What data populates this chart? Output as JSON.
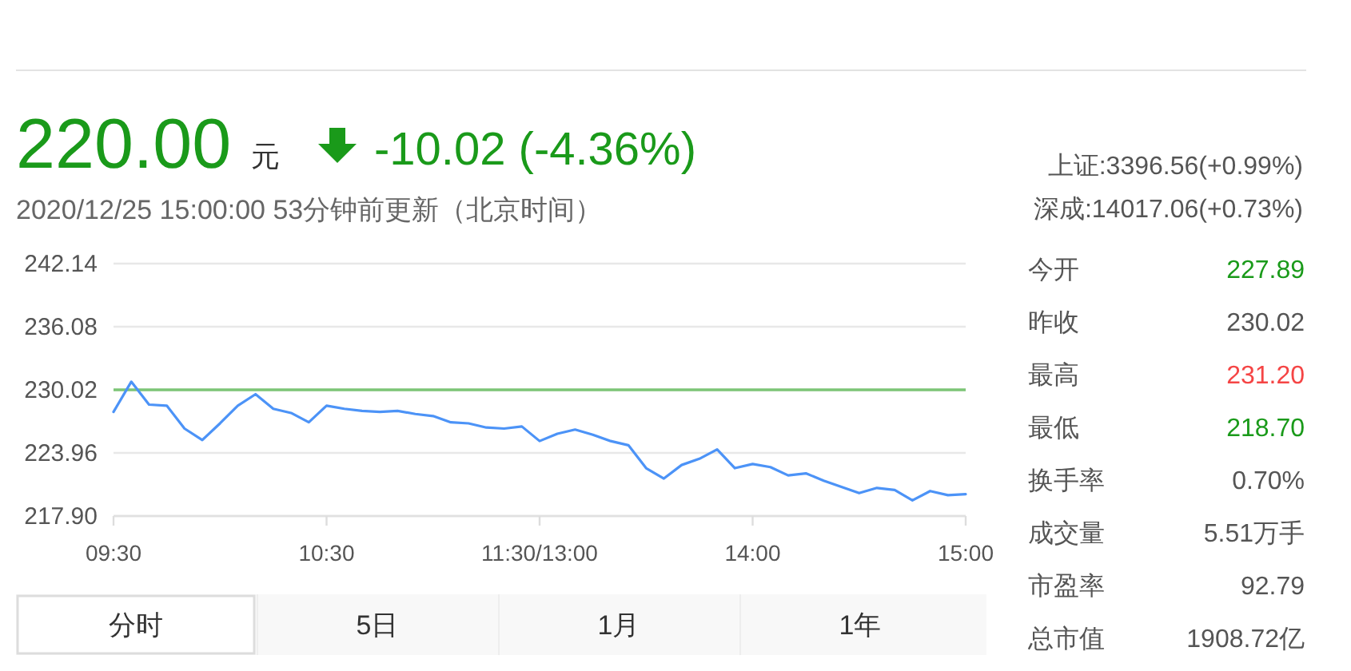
{
  "chart_data": {
    "type": "line",
    "title": "220.00",
    "annotations": [
      "元",
      "-10.02 (-4.36%)",
      "2020/12/25 15:00:00  53分钟前更新（北京时间）",
      "上证:3396.56(+0.99%)",
      "深成:14017.06(+0.73%)",
      "今开",
      "227.89",
      "昨收",
      "230.02",
      "最高",
      "231.20",
      "最低",
      "218.70",
      "换手率",
      "0.70%",
      "成交量",
      "5.51万手",
      "市盈率",
      "92.79",
      "总市值",
      "1908.72亿",
      "分时",
      "5日",
      "1月",
      "1年"
    ],
    "series": [
      {
        "color": "#4c93f7",
        "values": [
          227.9,
          230.8,
          228.6,
          228.5,
          226.3,
          225.2,
          226.8,
          228.5,
          229.6,
          228.2,
          227.8,
          226.9,
          228.5,
          228.2,
          228.0,
          227.9,
          228.0,
          227.7,
          227.5,
          226.9,
          226.8,
          226.4,
          226.3,
          226.5,
          225.1,
          225.8,
          226.2,
          225.7,
          225.1,
          224.7,
          222.5,
          221.5,
          222.8,
          223.4,
          224.3,
          222.5,
          222.9,
          222.6,
          221.8,
          222.0,
          221.3,
          220.7,
          220.1,
          220.6,
          220.4,
          219.4,
          220.3,
          219.9,
          220.0
        ]
      }
    ],
    "categories": [
      "09:30",
      null,
      null,
      null,
      null,
      null,
      null,
      null,
      null,
      null,
      null,
      null,
      "10:30",
      null,
      null,
      null,
      null,
      null,
      null,
      null,
      null,
      null,
      null,
      null,
      "11:30/13:00",
      null,
      null,
      null,
      null,
      null,
      null,
      null,
      null,
      null,
      null,
      null,
      "14:00",
      null,
      null,
      null,
      null,
      null,
      null,
      null,
      null,
      null,
      null,
      null,
      "15:00"
    ],
    "ylim": [
      217.9,
      242.14
    ],
    "yticks": [
      {
        "value": 217.9,
        "label": "217.90"
      },
      {
        "value": 223.96,
        "label": "223.96"
      },
      {
        "value": 230.02,
        "label": "230.02"
      },
      {
        "value": 236.08,
        "label": "236.08"
      },
      {
        "value": 242.14,
        "label": "242.14"
      }
    ],
    "ref_lines": [
      {
        "axis": "y",
        "value": 230.02,
        "color": "#7cc576"
      }
    ],
    "grid": "y",
    "marker": "none",
    "line_style": "solid"
  }
}
